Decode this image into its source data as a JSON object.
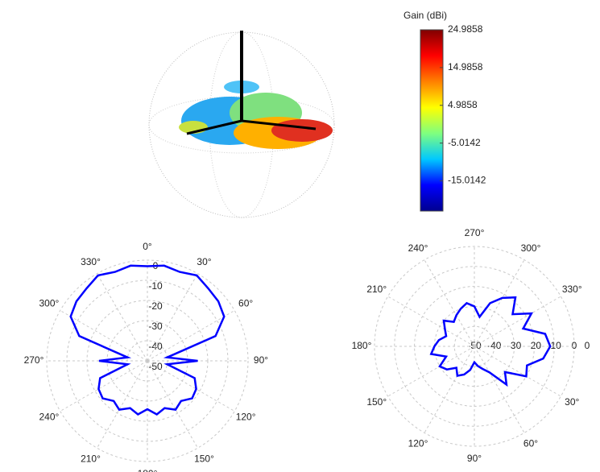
{
  "chart_data": [
    {
      "type": "surface3d",
      "colorbar_label": "Gain (dBi)",
      "clim": [
        -23,
        24.9858
      ],
      "cticks": [
        24.9858,
        14.9858,
        4.9858,
        -5.0142,
        -15.0142
      ],
      "colormap": [
        "#00008f",
        "#0000ff",
        "#00c8ff",
        "#7fff7f",
        "#ffff00",
        "#ff8000",
        "#ff0000",
        "#800000"
      ]
    },
    {
      "type": "polar",
      "theta_zero": "top",
      "theta_direction": "clockwise",
      "color": "#0000ff",
      "grid": true,
      "rlim": [
        -50,
        0
      ],
      "rticks": [
        0,
        -10,
        -20,
        -30,
        -40,
        -50
      ],
      "thetaticks": [
        {
          "value": 0,
          "label": "0°"
        },
        {
          "value": 30,
          "label": "30°"
        },
        {
          "value": 60,
          "label": "60°"
        },
        {
          "value": 90,
          "label": "90°"
        },
        {
          "value": 120,
          "label": "120°"
        },
        {
          "value": 150,
          "label": "150°"
        },
        {
          "value": 180,
          "label": "180°"
        },
        {
          "value": 210,
          "label": "210°"
        },
        {
          "value": 240,
          "label": "240°"
        },
        {
          "value": 270,
          "label": "270°"
        },
        {
          "value": 300,
          "label": "300°"
        },
        {
          "value": 330,
          "label": "330°"
        }
      ],
      "theta": [
        0,
        10,
        20,
        30,
        40,
        50,
        60,
        70,
        80,
        90,
        100,
        110,
        120,
        130,
        140,
        150,
        160,
        170,
        180,
        190,
        200,
        210,
        220,
        230,
        240,
        250,
        260,
        270,
        280,
        290,
        300,
        310,
        320,
        330,
        340,
        350
      ],
      "values": [
        -3,
        -2,
        -3,
        -1,
        -3,
        -4,
        -6,
        -14,
        -40,
        -25,
        -40,
        -25,
        -22,
        -21,
        -24,
        -22,
        -25,
        -23,
        -26,
        -23,
        -25,
        -22,
        -24,
        -21,
        -22,
        -25,
        -40,
        -26,
        -40,
        -14,
        -6,
        -4,
        -3,
        -1,
        -3,
        -2
      ]
    },
    {
      "type": "polar",
      "theta_zero": "right",
      "theta_direction": "clockwise",
      "color": "#0000ff",
      "grid": true,
      "rlim": [
        -50,
        0
      ],
      "rticks": [
        -50,
        -40,
        -30,
        -20,
        -10,
        0
      ],
      "thetaticks": [
        0,
        {
          "value": 30,
          "label": "30°"
        },
        {
          "value": 60,
          "label": "60°"
        },
        {
          "value": 90,
          "label": "90°"
        },
        {
          "value": 120,
          "label": "120°"
        },
        {
          "value": 150,
          "label": "150°"
        },
        {
          "value": 180,
          "label": "180°"
        },
        {
          "value": 210,
          "label": "210°"
        },
        {
          "value": 240,
          "label": "240°"
        },
        {
          "value": 270,
          "label": "270°"
        },
        {
          "value": 300,
          "label": "300°"
        },
        {
          "value": 330,
          "label": "330°"
        }
      ],
      "theta": [
        0,
        10,
        20,
        30,
        40,
        50,
        60,
        70,
        80,
        90,
        100,
        110,
        120,
        130,
        140,
        150,
        160,
        170,
        180,
        190,
        200,
        210,
        220,
        230,
        240,
        250,
        260,
        270,
        280,
        290,
        300,
        310,
        320,
        330,
        340,
        350
      ],
      "values": [
        -12,
        -15,
        -22,
        -20,
        -30,
        -25,
        -35,
        -38,
        -40,
        -42,
        -38,
        -35,
        -33,
        -36,
        -32,
        -30,
        -35,
        -28,
        -30,
        -32,
        -35,
        -33,
        -30,
        -34,
        -32,
        -30,
        -28,
        -30,
        -35,
        -27,
        -22,
        -18,
        -25,
        -17,
        -24,
        -14
      ]
    }
  ]
}
